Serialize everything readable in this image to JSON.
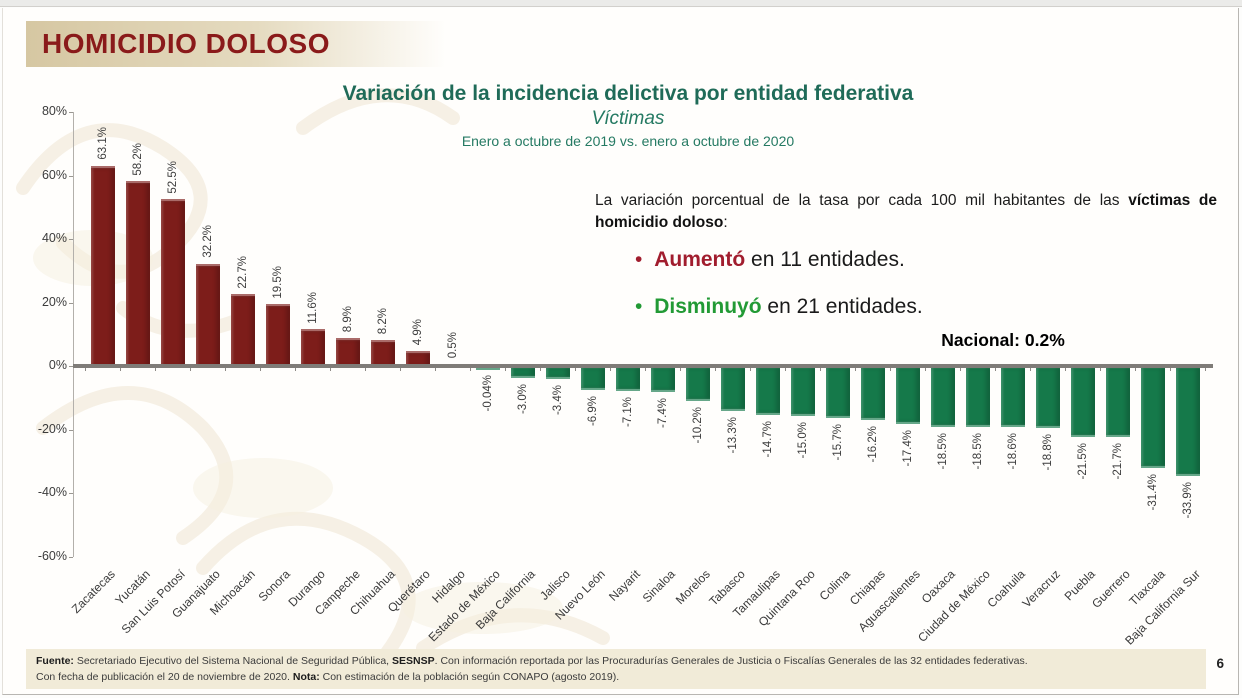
{
  "header": {
    "title": "HOMICIDIO DOLOSO"
  },
  "chart_data": {
    "type": "bar",
    "title": "Variación de la incidencia delictiva por entidad federativa",
    "subtitle": "Víctimas",
    "period": "Enero a octubre de 2019 vs. enero a octubre de 2020",
    "ylabel": "",
    "xlabel": "",
    "ylim": [
      -60,
      80
    ],
    "grid": false,
    "y_ticks": [
      80,
      60,
      40,
      20,
      0,
      -20,
      -40,
      -60
    ],
    "y_tick_labels": [
      "80%",
      "60%",
      "40%",
      "20%",
      "0%",
      "-20%",
      "-40%",
      "-60%"
    ],
    "categories": [
      "Zacatecas",
      "Yucatán",
      "San Luis Potosí",
      "Guanajuato",
      "Michoacán",
      "Sonora",
      "Durango",
      "Campeche",
      "Chihuahua",
      "Querétaro",
      "Hidalgo",
      "Estado de México",
      "Baja California",
      "Jalisco",
      "Nuevo León",
      "Nayarit",
      "Sinaloa",
      "Morelos",
      "Tabasco",
      "Tamaulipas",
      "Quintana Roo",
      "Colima",
      "Chiapas",
      "Aguascalientes",
      "Oaxaca",
      "Ciudad de México",
      "Coahuila",
      "Veracruz",
      "Puebla",
      "Guerrero",
      "Tlaxcala",
      "Baja California Sur"
    ],
    "values": [
      63.1,
      58.2,
      52.5,
      32.2,
      22.7,
      19.5,
      11.6,
      8.9,
      8.2,
      4.9,
      0.5,
      -0.04,
      -3.0,
      -3.4,
      -6.9,
      -7.1,
      -7.4,
      -10.2,
      -13.3,
      -14.7,
      -15.0,
      -15.7,
      -16.2,
      -17.4,
      -18.5,
      -18.5,
      -18.6,
      -18.8,
      -21.5,
      -21.7,
      -31.4,
      -33.9
    ],
    "value_labels": [
      "63.1%",
      "58.2%",
      "52.5%",
      "32.2%",
      "22.7%",
      "19.5%",
      "11.6%",
      "8.9%",
      "8.2%",
      "4.9%",
      "0.5%",
      "-0.04%",
      "-3.0%",
      "-3.4%",
      "-6.9%",
      "-7.1%",
      "-7.4%",
      "-10.2%",
      "-13.3%",
      "-14.7%",
      "-15.0%",
      "-15.7%",
      "-16.2%",
      "-17.4%",
      "-18.5%",
      "-18.5%",
      "-18.6%",
      "-18.8%",
      "-21.5%",
      "-21.7%",
      "-31.4%",
      "-33.9%"
    ],
    "positive_color": "#7d1d1a",
    "negative_color": "#15794a",
    "national_label": "Nacional: 0.2%"
  },
  "annotation": {
    "intro_text": "La variación porcentual de la tasa por cada 100 mil habitantes de las ",
    "intro_bold": "víctimas de homicidio doloso",
    "intro_colon": ":",
    "bullets": [
      {
        "bullet": "•",
        "highlight": "Aumentó",
        "rest": " en 11 entidades.",
        "color": "#a11d2e"
      },
      {
        "bullet": "•",
        "highlight": "Disminuyó",
        "rest": " en 21 entidades.",
        "color": "#229a35"
      }
    ]
  },
  "footer": {
    "fuente_label": "Fuente:",
    "fuente_text1": " Secretariado Ejecutivo del Sistema Nacional de Seguridad Pública, ",
    "fuente_bold": "SESNSP",
    "fuente_text2": ". Con información reportada por las Procuradurías Generales de Justicia o Fiscalías Generales de las 32 entidades federativas.",
    "line2_text1": "Con fecha de publicación el 20 de noviembre de 2020. ",
    "nota_label": "Nota:",
    "line2_text2": " Con estimación de la población según CONAPO (agosto 2019).",
    "page_number": "6"
  }
}
